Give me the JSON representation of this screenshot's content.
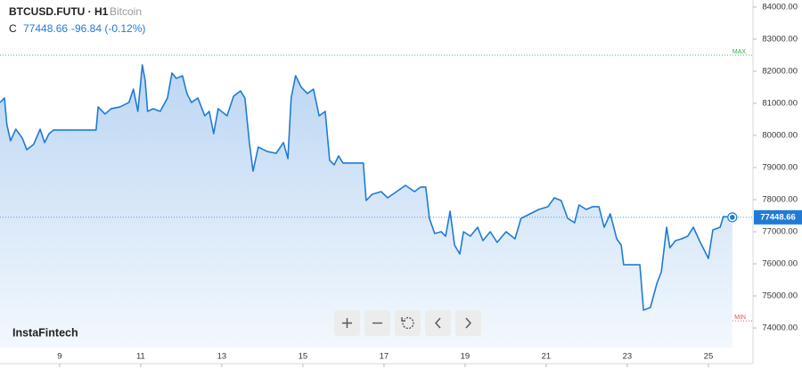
{
  "header": {
    "symbol": "BTCUSD.FUTU · H1",
    "name": "Bitcoin",
    "close_prefix": "C",
    "change": "-96.84 (-0.12%)"
  },
  "brand": "InstaFintech",
  "chart_data": {
    "type": "line",
    "color": "#1f7bd6",
    "area": true,
    "x": [
      7.53,
      7.64,
      7.7,
      7.79,
      7.92,
      8.08,
      8.19,
      8.36,
      8.52,
      8.63,
      8.74,
      8.85,
      9.9,
      9.95,
      10.12,
      10.27,
      10.49,
      10.71,
      10.82,
      10.93,
      11.04,
      11.11,
      11.17,
      11.31,
      11.48,
      11.66,
      11.77,
      11.88,
      12.03,
      12.14,
      12.25,
      12.41,
      12.58,
      12.69,
      12.8,
      12.91,
      13.13,
      13.29,
      13.46,
      13.57,
      13.68,
      13.77,
      13.9,
      14.12,
      14.34,
      14.52,
      14.63,
      14.71,
      14.82,
      14.96,
      15.11,
      15.26,
      15.4,
      15.55,
      15.66,
      15.77,
      15.88,
      15.99,
      16.49,
      16.56,
      16.71,
      16.93,
      17.09,
      17.31,
      17.53,
      17.75,
      17.9,
      18.03,
      18.12,
      18.25,
      18.41,
      18.52,
      18.63,
      18.74,
      18.87,
      18.96,
      19.13,
      19.31,
      19.44,
      19.62,
      19.79,
      20.01,
      20.23,
      20.38,
      20.6,
      20.82,
      21.04,
      21.2,
      21.37,
      21.53,
      21.7,
      21.81,
      21.99,
      22.14,
      22.3,
      22.43,
      22.58,
      22.74,
      22.85,
      22.91,
      23.31,
      23.4,
      23.57,
      23.73,
      23.84,
      23.97,
      24.05,
      24.19,
      24.34,
      24.49,
      24.63,
      24.78,
      25.0,
      25.11,
      25.29,
      25.37,
      25.59
    ],
    "values": [
      81028,
      81167,
      80333,
      79833,
      80194,
      79917,
      79556,
      79722,
      80194,
      79778,
      80056,
      80167,
      80167,
      80889,
      80667,
      80833,
      80889,
      81028,
      81444,
      80750,
      82194,
      81722,
      80750,
      80833,
      80750,
      81167,
      81944,
      81778,
      81861,
      81306,
      81028,
      81167,
      80611,
      80750,
      80056,
      80833,
      80611,
      81222,
      81389,
      81167,
      79778,
      78889,
      79639,
      79500,
      79444,
      79778,
      79278,
      81167,
      81861,
      81500,
      81306,
      81444,
      80611,
      80750,
      79222,
      79083,
      79361,
      79139,
      79139,
      77972,
      78167,
      78250,
      78056,
      78250,
      78444,
      78250,
      78389,
      78389,
      77417,
      76944,
      77000,
      76861,
      77639,
      76583,
      76306,
      77000,
      76861,
      77139,
      76722,
      77000,
      76667,
      77000,
      76778,
      77417,
      77556,
      77694,
      77778,
      78056,
      77972,
      77417,
      77278,
      77833,
      77694,
      77778,
      77778,
      77139,
      77556,
      76778,
      76583,
      75972,
      75972,
      74556,
      74639,
      75389,
      75750,
      77139,
      76500,
      76722,
      76778,
      76861,
      77139,
      76722,
      76167,
      77056,
      77139,
      77472,
      77448.66
    ],
    "xlim": [
      7.53,
      26.1
    ],
    "xticks": [
      9,
      11,
      13,
      15,
      17,
      19,
      21,
      23,
      25
    ],
    "ylim": [
      73390,
      84220
    ],
    "yticks": [
      {
        "value": 74000,
        "label": "74000.00"
      },
      {
        "value": 75000,
        "label": "75000.00"
      },
      {
        "value": 76000,
        "label": "76000.00"
      },
      {
        "value": 77000,
        "label": "77000.00"
      },
      {
        "value": 78000,
        "label": "78000.00"
      },
      {
        "value": 79000,
        "label": "79000.00"
      },
      {
        "value": 80000,
        "label": "80000.00"
      },
      {
        "value": 81000,
        "label": "81000.00"
      },
      {
        "value": 82000,
        "label": "82000.00"
      },
      {
        "value": 83000,
        "label": "83000.00"
      },
      {
        "value": 84000,
        "label": "84000.00"
      }
    ],
    "reference_lines": [
      {
        "value": 82500,
        "label": "MAX",
        "color": "#3aa757"
      },
      {
        "value": 74222,
        "label": "MIN",
        "color": "#e05555"
      }
    ]
  }
}
